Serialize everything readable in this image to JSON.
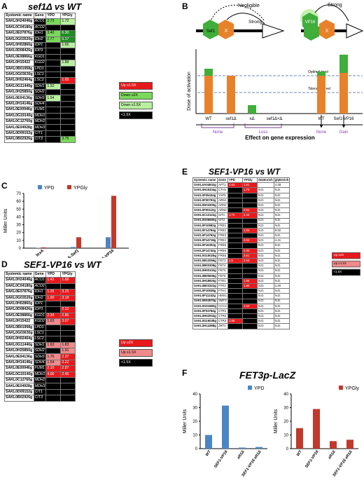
{
  "panels": {
    "A": {
      "letter": "A",
      "title": "sef1Δ vs WT",
      "headers": [
        "Systemic name",
        "Gene",
        "YPD",
        "YPGly"
      ],
      "rows": [
        [
          "SAKL0H24046g",
          "ACO1",
          "2.73",
          "1.72"
        ],
        [
          "SAKL0C04180g",
          "ACO2",
          "",
          ""
        ],
        [
          "SAKL0E07876g",
          "IDH1",
          "3.40",
          "6.30"
        ],
        [
          "SAKL0G03520g",
          "IDH2",
          "2.77",
          "5.17"
        ],
        [
          "SAKL0H02860g",
          "IDP1",
          "",
          "1.65"
        ],
        [
          "SAKL0D08426g",
          "IDP3",
          "",
          ""
        ],
        [
          "SAKL0E08866g",
          "KGD1",
          "",
          ""
        ],
        [
          "SAKL0H15422",
          "KGD2",
          "",
          "1.89"
        ],
        [
          "SAKL0B01958g",
          "LPD1",
          "",
          ""
        ],
        [
          "SAKL0G03630g",
          "LSC1",
          "",
          ""
        ],
        [
          "SAKL0H02464g",
          "LSC2",
          "",
          "1.65"
        ],
        [
          "SAKL0G11440g",
          "SDH1",
          "1.52",
          ""
        ],
        [
          "SAKL0H25850g",
          "SDH2",
          "",
          ""
        ],
        [
          "SAKL0E04136g",
          "SDH3",
          "1.54",
          ""
        ],
        [
          "SAKL0H14146g",
          "SDH4",
          "",
          ""
        ],
        [
          "SAKL0E00946g",
          "FUM1",
          "",
          ""
        ],
        [
          "SAKL0G19140g",
          "MDH1",
          "",
          ""
        ],
        [
          "SAKL0C12760g",
          "MDH2",
          "",
          ""
        ],
        [
          "SAKL0E04928g",
          "MDH3",
          "",
          ""
        ],
        [
          "SAKL0D09152g",
          "CIT1",
          "",
          ""
        ],
        [
          "SAKL0B02926g",
          "CIT3",
          "",
          "3.75"
        ]
      ],
      "colors": [
        [
          "mg",
          "lg"
        ],
        [
          "blk",
          "blk"
        ],
        [
          "mg",
          "dg"
        ],
        [
          "mg",
          "dg"
        ],
        [
          "blk",
          "lg"
        ],
        [
          "blk",
          "blk"
        ],
        [
          "blk",
          "blk"
        ],
        [
          "blk",
          "lg"
        ],
        [
          "blk",
          "blk"
        ],
        [
          "blk",
          "blk"
        ],
        [
          "blk",
          "red"
        ],
        [
          "lg",
          "blk"
        ],
        [
          "blk",
          "blk"
        ],
        [
          "lg",
          "blk"
        ],
        [
          "blk",
          "blk"
        ],
        [
          "blk",
          "blk"
        ],
        [
          "blk",
          "blk"
        ],
        [
          "blk",
          "blk"
        ],
        [
          "blk",
          "blk"
        ],
        [
          "blk",
          "blk"
        ],
        [
          "blk",
          "mg"
        ]
      ],
      "legend": [
        "Up ≥1.5X",
        "Down ≥2X",
        "Down ≥1.5X",
        "<1.5X"
      ]
    },
    "B": {
      "letter": "B",
      "label_negligible": "Negligible",
      "label_strong_left": "Strong",
      "label_strong_right": "Strong",
      "sef1": "Sef1",
      "vp16": "VP16",
      "x": "X",
      "ylabel": "Dose of activation",
      "optimal": "Optimal level",
      "tolerable": "Tolerable level",
      "xlabels": [
        "WT",
        "sef1Δ",
        "xΔ",
        "sef1Δ×Δ",
        "WT",
        "Sef1-VP16"
      ],
      "effects": [
        "None",
        "Loss",
        "None",
        "Gain"
      ],
      "xaxis_title": "Effect on gene expression"
    },
    "C": {
      "letter": "C",
      "legend": [
        "YPD",
        "YPGly"
      ],
      "ylabel": "Miller Units",
      "yticks": [
        "0",
        "10",
        "20",
        "30",
        "40",
        "50",
        "60",
        "70"
      ]
    },
    "D": {
      "letter": "D",
      "title": "SEF1-VP16 vs WT",
      "headers": [
        "Systemic name",
        "Gene",
        "YPD",
        "YPGly"
      ],
      "rows": [
        [
          "SAKL0H24046g",
          "ACO1",
          "1.42",
          "1.88"
        ],
        [
          "SAKL0C04180g",
          "ACO2",
          "",
          ""
        ],
        [
          "SAKL0E07876g",
          "IDH1",
          "1.26",
          "3.25"
        ],
        [
          "SAKL0G03520g",
          "IDH2",
          "1.00",
          "3.18"
        ],
        [
          "SAKL0H02860g",
          "IDP1",
          "",
          ""
        ],
        [
          "SAKL0D08426g",
          "IDP3",
          "",
          "2.12"
        ],
        [
          "SAKL0E08866g",
          "KGD1",
          "2.34",
          "2.86"
        ],
        [
          "SAKL0H15422",
          "KGD2",
          "1.63",
          "3.07"
        ],
        [
          "SAKL0B01958g",
          "LPD1",
          "",
          ""
        ],
        [
          "SAKL0G03630g",
          "LSC1",
          "",
          ""
        ],
        [
          "SAKL0H02464g",
          "LSC2",
          "",
          ""
        ],
        [
          "SAKL0G11440g",
          "SDH1",
          "1.63",
          "1.83"
        ],
        [
          "SAKL0H25850g",
          "SDH2",
          "",
          "1.91"
        ],
        [
          "SAKL0E04136g",
          "SDH3",
          "1.76",
          "2.37"
        ],
        [
          "SAKL0H14146g",
          "SDH4",
          "1.54",
          "2.22"
        ],
        [
          "SAKL0E00946g",
          "FUM1",
          "2.10",
          "2.87"
        ],
        [
          "SAKL0G19140g",
          "MDH1",
          "4.06",
          "2.45"
        ],
        [
          "SAKL0C12760g",
          "MDH2",
          "",
          ""
        ],
        [
          "SAKL0E04928g",
          "MDH3",
          "",
          ""
        ],
        [
          "SAKL0D09152g",
          "CIT1",
          "",
          ""
        ],
        [
          "SAKL0B02926g",
          "CIT3",
          "",
          ""
        ]
      ],
      "colors": [
        [
          "red",
          "red"
        ],
        [
          "blk",
          "blk"
        ],
        [
          "red",
          "red"
        ],
        [
          "red",
          "red"
        ],
        [
          "blk",
          "blk"
        ],
        [
          "blk",
          "red"
        ],
        [
          "red",
          "red"
        ],
        [
          "pink",
          "red"
        ],
        [
          "blk",
          "blk"
        ],
        [
          "blk",
          "blk"
        ],
        [
          "blk",
          "blk"
        ],
        [
          "pink",
          "pink"
        ],
        [
          "blk",
          "pink"
        ],
        [
          "pink",
          "red"
        ],
        [
          "pink",
          "red"
        ],
        [
          "red",
          "red"
        ],
        [
          "red",
          "red"
        ],
        [
          "blk",
          "blk"
        ],
        [
          "blk",
          "blk"
        ],
        [
          "blk",
          "blk"
        ],
        [
          "blk",
          "blk"
        ]
      ],
      "legend": [
        "Up ≥2X",
        "Up ≥1.5X",
        "<1.5X"
      ]
    },
    "E": {
      "letter": "E",
      "title": "SEF1-VP16 vs WT",
      "headers": [
        "Systemic name",
        "Gene",
        "YPD",
        "YPGly",
        "dexEnrich",
        "glyEnrich"
      ],
      "rows": [
        [
          "SAKL0A04532g",
          "AFT1",
          "1.63",
          "1.81",
          "",
          "4.28"
        ],
        [
          "SAKL0H15334g",
          "CTH1",
          "",
          "1.79",
          "N.D.",
          "N.D."
        ],
        [
          "SAKL0F05434g",
          "YAP5",
          "",
          "",
          "N.D.",
          "N.D."
        ],
        [
          "SAKL0F00792g",
          "ARN1",
          "",
          "",
          "N.D.",
          "N.D."
        ],
        [
          "SAKL0D03300g",
          "ARN2",
          "",
          "",
          "N.D.",
          "N.D."
        ],
        [
          "SAKL0F00110g",
          "ARN3",
          "",
          "2.51",
          "N.D.",
          "N.D."
        ],
        [
          "SAKL0C12122g",
          "SIT1",
          "1.72",
          "2.34",
          "N.D.",
          "N.D."
        ],
        [
          "SAKL0G06600g",
          "SIT2",
          "",
          "",
          "N.D.",
          "N.D."
        ],
        [
          "SAKL0F10582g",
          "FRE1",
          "",
          "",
          "N.D.",
          "N.D."
        ],
        [
          "SAKL0F14784g",
          "FRE2",
          "",
          "1.84",
          "N.D.",
          "9.82"
        ],
        [
          "SAKL0F14762g",
          "FRE3",
          "",
          "",
          "N.D.",
          "N.D."
        ],
        [
          "SAKL0F14718g",
          "FRE4",
          "",
          "2.04",
          "N.D.",
          "4.41"
        ],
        [
          "SAKL0F16302g",
          "FRE6",
          "",
          "",
          "N.D.",
          "N.D."
        ],
        [
          "SAKL0F14740g",
          "FRE5",
          "",
          "2.30",
          "N.D.",
          "N.D."
        ],
        [
          "SAKL0G15026g",
          "FRE6",
          "",
          "2.61",
          "N.D.",
          "N.D."
        ],
        [
          "SAKL0B12056g",
          "FET3",
          "1.6",
          "2.53",
          "N.D.",
          "N.D."
        ],
        [
          "SAKL0B00308g",
          "FET4",
          "",
          "",
          "N.D.",
          "N.D."
        ],
        [
          "SAKL0H00132g",
          "FET5",
          "",
          "",
          "N.D.",
          "N.D."
        ],
        [
          "SAKL0B00836g",
          "FET5",
          "",
          "",
          "N.D.",
          "N.D."
        ],
        [
          "SAKL0H18920g",
          "FTR1",
          "",
          "1.66",
          "N.D.",
          "N.D."
        ],
        [
          "SAKL0B03322g",
          "FTR2",
          "",
          "1.86",
          "N.D.",
          "2.20"
        ],
        [
          "SAKL0F10538g",
          "FTH1",
          "",
          "",
          "N.D.",
          "N.D."
        ],
        [
          "SAKL0F11242g",
          "HMX1",
          "",
          "",
          "N.D.",
          "N.D."
        ],
        [
          "SAKL0E04576g",
          "SMF3",
          "",
          "",
          "N.D.",
          "N.D."
        ],
        [
          "SAKL0G01650g",
          "CCC2",
          "",
          "1.52",
          "N.D.",
          "N.D."
        ],
        [
          "SAKL0F03784g",
          "CTR1",
          "",
          "",
          "N.D.",
          "N.D."
        ],
        [
          "SAKL0H02002g",
          "CTR2",
          "",
          "",
          "N.D.",
          "N.D."
        ],
        [
          "SAKL0G16038g",
          "CTR3",
          "1.96",
          "",
          "N.D.",
          "N.D."
        ],
        [
          "SAKL0H14388g",
          "ZRT1",
          "",
          "",
          "N.D.",
          "N.D."
        ]
      ],
      "colors": [
        [
          "red",
          "red"
        ],
        [
          "blk",
          "red"
        ],
        [
          "blk",
          "blk"
        ],
        [
          "blk",
          "blk"
        ],
        [
          "blk",
          "blk"
        ],
        [
          "blk",
          "red"
        ],
        [
          "red",
          "red"
        ],
        [
          "blk",
          "blk"
        ],
        [
          "blk",
          "blk"
        ],
        [
          "blk",
          "red"
        ],
        [
          "blk",
          "blk"
        ],
        [
          "blk",
          "red"
        ],
        [
          "blk",
          "blk"
        ],
        [
          "blk",
          "red"
        ],
        [
          "blk",
          "red"
        ],
        [
          "red",
          "red"
        ],
        [
          "blk",
          "blk"
        ],
        [
          "blk",
          "blk"
        ],
        [
          "blk",
          "blk"
        ],
        [
          "blk",
          "red"
        ],
        [
          "blk",
          "red"
        ],
        [
          "blk",
          "blk"
        ],
        [
          "blk",
          "blk"
        ],
        [
          "blk",
          "blk"
        ],
        [
          "blk",
          "red"
        ],
        [
          "blk",
          "blk"
        ],
        [
          "blk",
          "blk"
        ],
        [
          "red",
          "blk"
        ],
        [
          "blk",
          "blk"
        ]
      ],
      "legend": [
        "Up ≥2X",
        "Up ≥1.5X",
        "<1.5X"
      ]
    },
    "F": {
      "letter": "F",
      "title": "FET3p-LacZ",
      "ylabel": "Miller Units"
    }
  },
  "colors": {
    "ypd": "#4a86c6",
    "ypgly": "#c0392b",
    "red": "#e8191c",
    "green": "#3fae3a",
    "orange": "#e8822a"
  },
  "chart_data": [
    {
      "type": "bar",
      "panel": "C",
      "categories": [
        "lexA",
        "lexA-Sef1",
        "lexA-Sef1-VP16"
      ],
      "series": [
        {
          "name": "YPD",
          "values": [
            0.5,
            1.5,
            14
          ]
        },
        {
          "name": "YPGly",
          "values": [
            1,
            14,
            67
          ]
        }
      ],
      "ylabel": "Miller Units",
      "ylim": [
        0,
        70
      ]
    },
    {
      "type": "bar",
      "panel": "F-left",
      "categories": [
        "WT",
        "SEF1-VP16",
        "aft1Δ",
        "SEF1-VP16 aft1Δ"
      ],
      "series": [
        {
          "name": "YPD",
          "values": [
            10,
            31.5,
            0.8,
            1.2
          ]
        }
      ],
      "ylabel": "Miller Units",
      "ylim": [
        0,
        40
      ],
      "yticks": [
        0,
        10,
        20,
        30,
        40
      ]
    },
    {
      "type": "bar",
      "panel": "F-right",
      "categories": [
        "WT",
        "SEF1-VP16",
        "aft1Δ",
        "SEF1-VP16 aft1Δ"
      ],
      "series": [
        {
          "name": "YPGly",
          "values": [
            15,
            29,
            5.5,
            6.5
          ]
        }
      ],
      "ylabel": "Miller Units",
      "ylim": [
        0,
        40
      ],
      "yticks": [
        0,
        10,
        20,
        30,
        40
      ]
    }
  ]
}
